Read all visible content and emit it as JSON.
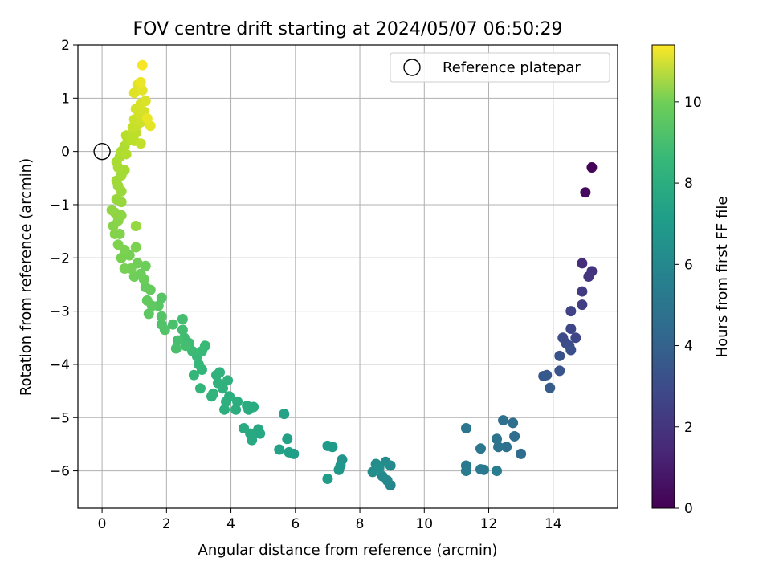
{
  "chart_data": {
    "type": "scatter",
    "title": "FOV centre drift starting at 2024/05/07 06:50:29",
    "xlabel": "Angular distance from reference (arcmin)",
    "ylabel": "Rotation from reference (arcmin)",
    "xlim": [
      -0.75,
      16.0
    ],
    "ylim": [
      -6.7,
      2.0
    ],
    "xticks": [
      0,
      2,
      4,
      6,
      8,
      10,
      12,
      14
    ],
    "yticks": [
      2,
      1,
      0,
      -1,
      -2,
      -3,
      -4,
      -5,
      -6
    ],
    "grid": true,
    "colormap": "viridis",
    "colorbar": {
      "label": "Hours from first FF file",
      "range": [
        0,
        11.4
      ],
      "ticks": [
        0,
        2,
        4,
        6,
        8,
        10
      ]
    },
    "legend": {
      "position": "top-right",
      "entries": [
        {
          "label": "Reference platepar",
          "marker": "open-circle"
        }
      ]
    },
    "reference_point": {
      "x": 0,
      "y": 0
    },
    "points": [
      [
        15.2,
        -0.3,
        0.1
      ],
      [
        15.0,
        -0.77,
        0.3
      ],
      [
        14.9,
        -2.1,
        1.5
      ],
      [
        15.2,
        -2.25,
        1.7
      ],
      [
        15.1,
        -2.35,
        1.8
      ],
      [
        14.9,
        -2.63,
        2.0
      ],
      [
        14.9,
        -2.88,
        2.1
      ],
      [
        14.55,
        -3.0,
        2.3
      ],
      [
        14.55,
        -3.33,
        2.4
      ],
      [
        14.7,
        -3.5,
        2.5
      ],
      [
        14.3,
        -3.5,
        2.6
      ],
      [
        14.4,
        -3.6,
        2.6
      ],
      [
        14.5,
        -3.65,
        2.7
      ],
      [
        14.55,
        -3.73,
        2.8
      ],
      [
        14.2,
        -3.84,
        2.9
      ],
      [
        14.2,
        -4.12,
        3.0
      ],
      [
        13.7,
        -4.22,
        3.1
      ],
      [
        13.8,
        -4.2,
        3.2
      ],
      [
        13.9,
        -4.44,
        3.3
      ],
      [
        13.0,
        -5.68,
        4.0
      ],
      [
        12.8,
        -5.35,
        4.1
      ],
      [
        12.75,
        -5.1,
        4.15
      ],
      [
        12.45,
        -5.05,
        4.2
      ],
      [
        12.55,
        -5.55,
        4.25
      ],
      [
        12.3,
        -5.55,
        4.3
      ],
      [
        12.25,
        -5.4,
        4.35
      ],
      [
        11.3,
        -5.2,
        4.5
      ],
      [
        11.75,
        -5.58,
        4.55
      ],
      [
        11.85,
        -5.98,
        4.6
      ],
      [
        11.75,
        -5.97,
        4.65
      ],
      [
        11.3,
        -5.9,
        4.7
      ],
      [
        11.3,
        -6.0,
        4.75
      ],
      [
        12.25,
        -6.0,
        4.8
      ],
      [
        8.95,
        -6.27,
        5.3
      ],
      [
        8.85,
        -6.18,
        5.35
      ],
      [
        8.7,
        -6.1,
        5.4
      ],
      [
        8.95,
        -5.9,
        5.45
      ],
      [
        8.8,
        -5.83,
        5.5
      ],
      [
        8.5,
        -5.87,
        5.55
      ],
      [
        8.4,
        -6.02,
        5.6
      ],
      [
        8.6,
        -5.95,
        5.65
      ],
      [
        7.45,
        -5.79,
        5.9
      ],
      [
        7.4,
        -5.9,
        5.95
      ],
      [
        7.35,
        -5.98,
        6.0
      ],
      [
        7.0,
        -5.53,
        6.2
      ],
      [
        7.15,
        -5.55,
        6.25
      ],
      [
        7.0,
        -6.15,
        6.3
      ],
      [
        5.95,
        -5.68,
        6.4
      ],
      [
        5.8,
        -5.65,
        6.45
      ],
      [
        5.75,
        -5.4,
        6.5
      ],
      [
        5.5,
        -5.6,
        6.55
      ],
      [
        5.65,
        -4.93,
        6.6
      ],
      [
        4.9,
        -5.3,
        6.8
      ],
      [
        4.85,
        -5.22,
        6.85
      ],
      [
        4.65,
        -5.42,
        6.9
      ],
      [
        4.6,
        -5.3,
        6.9
      ],
      [
        4.4,
        -5.2,
        6.95
      ],
      [
        4.7,
        -4.8,
        7.0
      ],
      [
        4.55,
        -4.85,
        7.0
      ],
      [
        4.5,
        -4.78,
        7.05
      ],
      [
        4.15,
        -4.85,
        7.1
      ],
      [
        4.2,
        -4.7,
        7.1
      ],
      [
        3.95,
        -4.6,
        7.15
      ],
      [
        3.8,
        -4.85,
        7.15
      ],
      [
        3.85,
        -4.7,
        7.2
      ],
      [
        3.9,
        -4.3,
        7.25
      ],
      [
        3.75,
        -4.45,
        7.25
      ],
      [
        3.6,
        -4.35,
        7.3
      ],
      [
        3.65,
        -4.15,
        7.3
      ],
      [
        3.55,
        -4.2,
        7.35
      ],
      [
        3.4,
        -4.6,
        7.35
      ],
      [
        3.45,
        -4.55,
        7.4
      ],
      [
        3.05,
        -4.45,
        7.45
      ],
      [
        3.1,
        -4.1,
        7.5
      ],
      [
        2.85,
        -4.2,
        7.55
      ],
      [
        3.0,
        -4.0,
        7.6
      ],
      [
        2.95,
        -3.85,
        7.65
      ],
      [
        3.1,
        -3.75,
        7.7
      ],
      [
        3.2,
        -3.65,
        7.7
      ],
      [
        2.8,
        -3.75,
        7.75
      ],
      [
        2.7,
        -3.6,
        7.8
      ],
      [
        2.55,
        -3.5,
        7.85
      ],
      [
        2.5,
        -3.35,
        7.9
      ],
      [
        2.5,
        -3.15,
        7.95
      ],
      [
        2.6,
        -3.65,
        7.95
      ],
      [
        2.35,
        -3.55,
        8.0
      ],
      [
        2.3,
        -3.7,
        8.05
      ],
      [
        2.2,
        -3.25,
        8.1
      ],
      [
        1.85,
        -3.25,
        8.2
      ],
      [
        1.95,
        -3.35,
        8.25
      ],
      [
        1.85,
        -3.1,
        8.3
      ],
      [
        1.85,
        -2.75,
        8.35
      ],
      [
        1.75,
        -2.9,
        8.4
      ],
      [
        1.45,
        -3.05,
        8.5
      ],
      [
        1.55,
        -2.9,
        8.55
      ],
      [
        1.4,
        -2.8,
        8.6
      ],
      [
        1.5,
        -2.6,
        8.65
      ],
      [
        1.35,
        -2.55,
        8.7
      ],
      [
        1.3,
        -2.4,
        8.75
      ],
      [
        1.2,
        -2.3,
        8.8
      ],
      [
        1.35,
        -2.15,
        8.8
      ],
      [
        1.0,
        -2.35,
        8.85
      ],
      [
        1.1,
        -2.1,
        8.9
      ],
      [
        0.9,
        -2.2,
        8.95
      ],
      [
        0.85,
        -1.95,
        9.0
      ],
      [
        0.7,
        -2.2,
        9.0
      ],
      [
        0.6,
        -2.0,
        9.05
      ],
      [
        0.7,
        -1.85,
        9.1
      ],
      [
        1.05,
        -1.8,
        9.1
      ],
      [
        0.5,
        -1.75,
        9.15
      ],
      [
        0.55,
        -1.55,
        9.2
      ],
      [
        0.4,
        -1.55,
        9.25
      ],
      [
        0.35,
        -1.4,
        9.3
      ],
      [
        0.5,
        -1.3,
        9.35
      ],
      [
        0.6,
        -1.2,
        9.4
      ],
      [
        0.4,
        -1.15,
        9.45
      ],
      [
        0.3,
        -1.1,
        9.5
      ],
      [
        1.05,
        -1.4,
        9.55
      ],
      [
        0.6,
        -0.95,
        9.6
      ],
      [
        0.45,
        -0.9,
        9.6
      ],
      [
        0.6,
        -0.75,
        9.65
      ],
      [
        0.5,
        -0.65,
        9.7
      ],
      [
        0.45,
        -0.55,
        9.75
      ],
      [
        0.6,
        -0.45,
        9.8
      ],
      [
        0.7,
        -0.35,
        9.85
      ],
      [
        0.5,
        -0.3,
        9.9
      ],
      [
        0.45,
        -0.2,
        9.9
      ],
      [
        0.55,
        -0.1,
        9.95
      ],
      [
        0.6,
        0.0,
        10.0
      ],
      [
        0.7,
        0.1,
        10.0
      ],
      [
        0.75,
        -0.05,
        10.05
      ],
      [
        0.8,
        0.2,
        10.1
      ],
      [
        0.75,
        0.3,
        10.15
      ],
      [
        0.9,
        0.25,
        10.2
      ],
      [
        1.0,
        0.2,
        10.25
      ],
      [
        1.05,
        0.35,
        10.3
      ],
      [
        1.2,
        0.15,
        10.35
      ],
      [
        0.95,
        0.45,
        10.4
      ],
      [
        1.1,
        0.5,
        10.45
      ],
      [
        1.0,
        0.6,
        10.5
      ],
      [
        1.2,
        0.55,
        10.55
      ],
      [
        1.15,
        0.7,
        10.6
      ],
      [
        1.05,
        0.8,
        10.65
      ],
      [
        1.3,
        0.75,
        10.7
      ],
      [
        1.2,
        0.9,
        10.75
      ],
      [
        1.35,
        0.95,
        10.8
      ],
      [
        1.0,
        1.1,
        10.85
      ],
      [
        1.1,
        1.25,
        10.9
      ],
      [
        1.25,
        1.15,
        10.95
      ],
      [
        1.5,
        0.48,
        11.0
      ],
      [
        1.4,
        0.62,
        11.05
      ],
      [
        1.2,
        1.3,
        11.1
      ],
      [
        1.25,
        1.62,
        11.3
      ]
    ]
  }
}
